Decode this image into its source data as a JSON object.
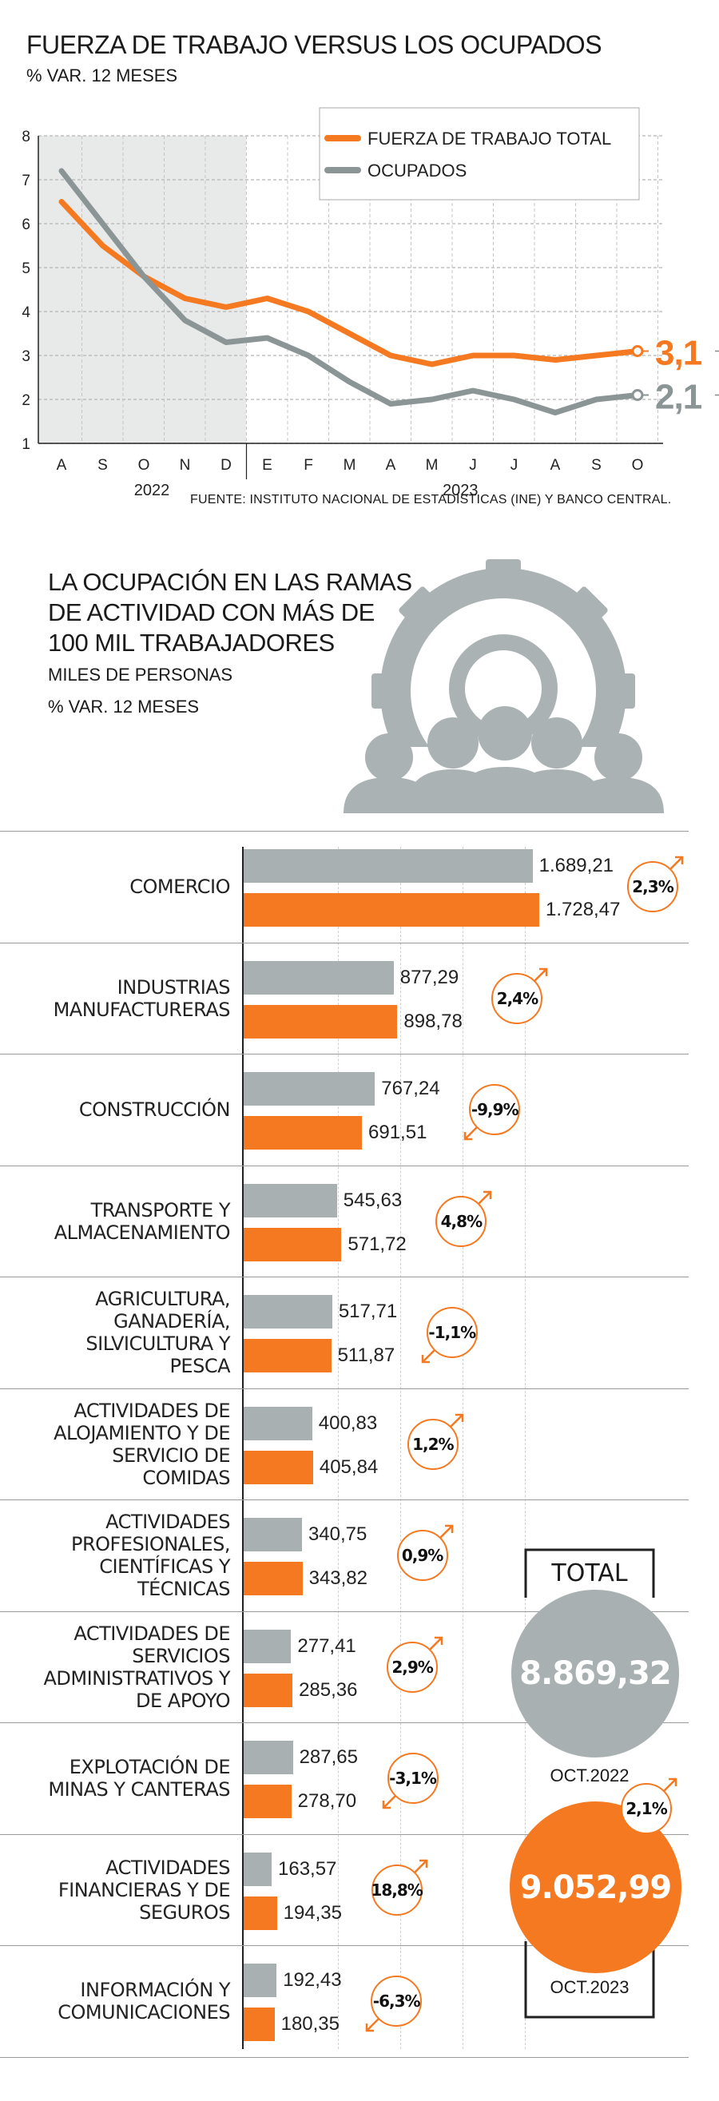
{
  "line_section": {
    "title": "FUERZA DE TRABAJO VERSUS LOS OCUPADOS",
    "subtitle": "% VAR. 12 MESES",
    "source": "FUENTE: INSTITUTO NACIONAL DE ESTADÍSTICAS (INE) Y BANCO CENTRAL."
  },
  "bar_section": {
    "title_lines": [
      "LA OCUPACIÓN EN LAS RAMAS",
      "DE ACTIVIDAD CON MÁS DE",
      "100 MIL TRABAJADORES"
    ],
    "subtitle1": "MILES DE PERSONAS",
    "subtitle2": "% VAR. 12 MESES"
  },
  "total_box": {
    "label": "TOTAL",
    "value_2022": "8.869,32",
    "label_2022": "OCT.2022",
    "value_2023": "9.052,99",
    "label_2023": "OCT.2023",
    "change": "2,1%"
  },
  "colors": {
    "orange": "#f57920",
    "gray": "#8c9596",
    "bar_gray": "#a8b0b1",
    "shade": "#e8eaea"
  },
  "chart_data": [
    {
      "type": "line",
      "title": "FUERZA DE TRABAJO VERSUS LOS OCUPADOS",
      "subtitle": "% VAR. 12 MESES",
      "x": [
        "A",
        "S",
        "O",
        "N",
        "D",
        "E",
        "F",
        "M",
        "A",
        "M",
        "J",
        "J",
        "A",
        "S",
        "O"
      ],
      "year_labels": [
        "2022",
        "2023"
      ],
      "ylim": [
        1,
        8
      ],
      "yticks": [
        1,
        2,
        3,
        4,
        5,
        6,
        7,
        8
      ],
      "shaded_period": "A–D 2022",
      "legend_position": "top-right",
      "grid": true,
      "series": [
        {
          "name": "FUERZA DE TRABAJO  TOTAL",
          "color": "#f57920",
          "values": [
            6.5,
            5.5,
            4.8,
            4.3,
            4.1,
            4.3,
            4.0,
            3.5,
            3.0,
            2.8,
            3.0,
            3.0,
            2.9,
            3.0,
            3.1
          ],
          "end_label": "3,1"
        },
        {
          "name": "OCUPADOS",
          "color": "#8c9596",
          "values": [
            7.2,
            6.0,
            4.8,
            3.8,
            3.3,
            3.4,
            3.0,
            2.4,
            1.9,
            2.0,
            2.2,
            2.0,
            1.7,
            2.0,
            2.1
          ],
          "end_label": "2,1"
        }
      ]
    },
    {
      "type": "bar",
      "orientation": "horizontal",
      "series": [
        {
          "name": "OCT.2022",
          "color": "#a8b0b1"
        },
        {
          "name": "OCT.2023",
          "color": "#f57920"
        }
      ],
      "categories": [
        {
          "label_lines": [
            "COMERCIO"
          ],
          "v2022": 1689.21,
          "v2023": 1728.47,
          "l2022": "1.689,21",
          "l2023": "1.728,47",
          "change": "2,3%"
        },
        {
          "label_lines": [
            "INDUSTRIAS",
            "MANUFACTURERAS"
          ],
          "v2022": 877.29,
          "v2023": 898.78,
          "l2022": "877,29",
          "l2023": "898,78",
          "change": "2,4%"
        },
        {
          "label_lines": [
            "CONSTRUCCIÓN"
          ],
          "v2022": 767.24,
          "v2023": 691.51,
          "l2022": "767,24",
          "l2023": "691,51",
          "change": "-9,9%"
        },
        {
          "label_lines": [
            "TRANSPORTE Y",
            "ALMACENAMIENTO"
          ],
          "v2022": 545.63,
          "v2023": 571.72,
          "l2022": "545,63",
          "l2023": "571,72",
          "change": "4,8%"
        },
        {
          "label_lines": [
            "AGRICULTURA,",
            "GANADERÍA,",
            "SILVICULTURA Y",
            "PESCA"
          ],
          "v2022": 517.71,
          "v2023": 511.87,
          "l2022": "517,71",
          "l2023": "511,87",
          "change": "-1,1%"
        },
        {
          "label_lines": [
            "ACTIVIDADES DE",
            "ALOJAMIENTO Y DE",
            "SERVICIO DE",
            "COMIDAS"
          ],
          "v2022": 400.83,
          "v2023": 405.84,
          "l2022": "400,83",
          "l2023": "405,84",
          "change": "1,2%"
        },
        {
          "label_lines": [
            "ACTIVIDADES",
            "PROFESIONALES,",
            "CIENTÍFICAS Y",
            "TÉCNICAS"
          ],
          "v2022": 340.75,
          "v2023": 343.82,
          "l2022": "340,75",
          "l2023": "343,82",
          "change": "0,9%"
        },
        {
          "label_lines": [
            "ACTIVIDADES DE",
            "SERVICIOS",
            "ADMINISTRATIVOS Y",
            "DE APOYO"
          ],
          "v2022": 277.41,
          "v2023": 285.36,
          "l2022": "277,41",
          "l2023": "285,36",
          "change": "2,9%"
        },
        {
          "label_lines": [
            "EXPLOTACIÓN DE",
            "MINAS Y CANTERAS"
          ],
          "v2022": 287.65,
          "v2023": 278.7,
          "l2022": "287,65",
          "l2023": "278,70",
          "change": "-3,1%"
        },
        {
          "label_lines": [
            "ACTIVIDADES",
            "FINANCIERAS Y DE",
            "SEGUROS"
          ],
          "v2022": 163.57,
          "v2023": 194.35,
          "l2022": "163,57",
          "l2023": "194,35",
          "change": "18,8%"
        },
        {
          "label_lines": [
            "INFORMACIÓN Y",
            "COMUNICACIONES"
          ],
          "v2022": 192.43,
          "v2023": 180.35,
          "l2022": "192,43",
          "l2023": "180,35",
          "change": "-6,3%"
        }
      ]
    }
  ]
}
